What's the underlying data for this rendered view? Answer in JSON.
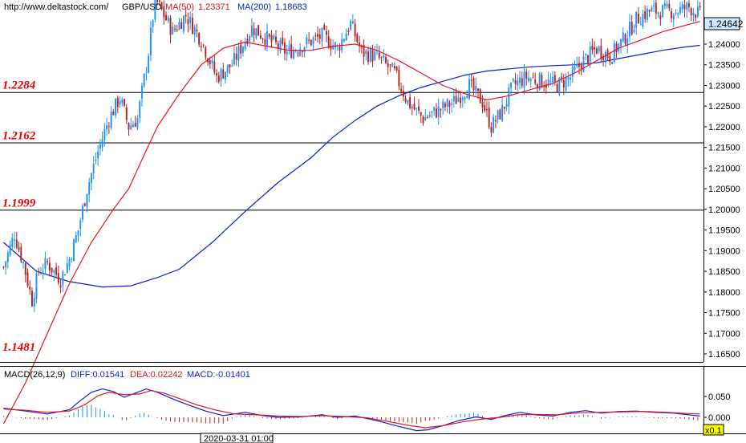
{
  "header": {
    "url": "http://www.deltastock.com/",
    "symbol": "GBP/USD",
    "ma50_label": "MA(50)",
    "ma50_value": "1.23371",
    "ma200_label": "MA(200)",
    "ma200_value": "1.18683"
  },
  "current_price": "1.24642",
  "macd_header": {
    "name": "MACD(26,12,9)",
    "diff": "DIFF:0.01541",
    "dea": "DEA:0.02242",
    "macd": "MACD:-0.01401"
  },
  "time_label": "2020-03-31 01:00",
  "zoom_label": "x0.1",
  "colors": {
    "up": "#1e90ff",
    "down": "#b22222",
    "ma50": "#e8141e",
    "ma200": "#0a1ed2",
    "level_text": "#e60000",
    "price_box": "#cde8ff"
  },
  "chart_data": [
    {
      "type": "candlestick",
      "title": "GBP/USD",
      "ylim": [
        1.16,
        1.26
      ],
      "y_ticks": [
        {
          "value": 1.165,
          "label": "1.16500"
        },
        {
          "value": 1.17,
          "label": "1.17000"
        },
        {
          "value": 1.175,
          "label": "1.17500"
        },
        {
          "value": 1.18,
          "label": "1.18000"
        },
        {
          "value": 1.185,
          "label": "1.18500"
        },
        {
          "value": 1.19,
          "label": "1.19000"
        },
        {
          "value": 1.195,
          "label": "1.19500"
        },
        {
          "value": 1.2,
          "label": "1.20000"
        },
        {
          "value": 1.205,
          "label": "1.20500"
        },
        {
          "value": 1.21,
          "label": "1.21000"
        },
        {
          "value": 1.215,
          "label": "1.21500"
        },
        {
          "value": 1.22,
          "label": "1.22000"
        },
        {
          "value": 1.225,
          "label": "1.22500"
        },
        {
          "value": 1.23,
          "label": "1.23000"
        },
        {
          "value": 1.235,
          "label": "1.23500"
        },
        {
          "value": 1.24,
          "label": "1.24000"
        }
      ],
      "levels": [
        {
          "value": 1.2284,
          "label": "1.2284"
        },
        {
          "value": 1.2162,
          "label": "1.2162"
        },
        {
          "value": 1.1999,
          "label": "1.1999"
        },
        {
          "value": 1.1481,
          "label": "1.1481"
        }
      ],
      "close_anchors": [
        [
          0,
          1.186
        ],
        [
          5,
          1.194
        ],
        [
          9,
          1.187
        ],
        [
          13,
          1.178
        ],
        [
          16,
          1.185
        ],
        [
          20,
          1.187
        ],
        [
          26,
          1.183
        ],
        [
          30,
          1.188
        ],
        [
          34,
          1.195
        ],
        [
          38,
          1.205
        ],
        [
          43,
          1.214
        ],
        [
          48,
          1.222
        ],
        [
          53,
          1.227
        ],
        [
          57,
          1.22
        ],
        [
          61,
          1.222
        ],
        [
          66,
          1.238
        ],
        [
          69,
          1.251
        ],
        [
          73,
          1.247
        ],
        [
          77,
          1.243
        ],
        [
          83,
          1.247
        ],
        [
          90,
          1.241
        ],
        [
          97,
          1.232
        ],
        [
          104,
          1.235
        ],
        [
          113,
          1.244
        ],
        [
          121,
          1.241
        ],
        [
          129,
          1.238
        ],
        [
          137,
          1.24
        ],
        [
          145,
          1.242
        ],
        [
          152,
          1.239
        ],
        [
          158,
          1.245
        ],
        [
          163,
          1.238
        ],
        [
          170,
          1.237
        ],
        [
          178,
          1.233
        ],
        [
          184,
          1.226
        ],
        [
          191,
          1.222
        ],
        [
          198,
          1.224
        ],
        [
          205,
          1.226
        ],
        [
          212,
          1.23
        ],
        [
          218,
          1.226
        ],
        [
          222,
          1.22
        ],
        [
          227,
          1.224
        ],
        [
          232,
          1.23
        ],
        [
          238,
          1.232
        ],
        [
          245,
          1.231
        ],
        [
          252,
          1.23
        ],
        [
          258,
          1.232
        ],
        [
          264,
          1.236
        ],
        [
          270,
          1.239
        ],
        [
          276,
          1.237
        ],
        [
          282,
          1.241
        ],
        [
          288,
          1.246
        ],
        [
          294,
          1.248
        ],
        [
          300,
          1.248
        ],
        [
          306,
          1.248
        ],
        [
          312,
          1.249
        ],
        [
          317,
          1.247
        ]
      ],
      "ma50": {
        "name": "MA(50)",
        "points": [
          [
            0,
            1.1481
          ],
          [
            10,
            1.158
          ],
          [
            20,
            1.17
          ],
          [
            30,
            1.182
          ],
          [
            40,
            1.192
          ],
          [
            50,
            1.2
          ],
          [
            57,
            1.205
          ],
          [
            63,
            1.212
          ],
          [
            70,
            1.22
          ],
          [
            80,
            1.228
          ],
          [
            90,
            1.235
          ],
          [
            100,
            1.239
          ],
          [
            110,
            1.2405
          ],
          [
            120,
            1.2395
          ],
          [
            130,
            1.2385
          ],
          [
            140,
            1.2385
          ],
          [
            150,
            1.2395
          ],
          [
            160,
            1.24
          ],
          [
            170,
            1.2385
          ],
          [
            180,
            1.236
          ],
          [
            190,
            1.233
          ],
          [
            200,
            1.23
          ],
          [
            210,
            1.228
          ],
          [
            220,
            1.2265
          ],
          [
            230,
            1.2275
          ],
          [
            240,
            1.229
          ],
          [
            250,
            1.2305
          ],
          [
            260,
            1.233
          ],
          [
            270,
            1.236
          ],
          [
            280,
            1.239
          ],
          [
            290,
            1.241
          ],
          [
            300,
            1.243
          ],
          [
            310,
            1.2445
          ],
          [
            317,
            1.2455
          ]
        ]
      },
      "ma200": {
        "name": "MA(200)",
        "points": [
          [
            0,
            1.192
          ],
          [
            15,
            1.185
          ],
          [
            30,
            1.1825
          ],
          [
            45,
            1.1812
          ],
          [
            58,
            1.1815
          ],
          [
            70,
            1.1835
          ],
          [
            80,
            1.1855
          ],
          [
            95,
            1.192
          ],
          [
            110,
            1.1995
          ],
          [
            125,
            1.2065
          ],
          [
            140,
            1.2125
          ],
          [
            150,
            1.2175
          ],
          [
            160,
            1.2215
          ],
          [
            170,
            1.225
          ],
          [
            180,
            1.2275
          ],
          [
            190,
            1.2295
          ],
          [
            200,
            1.231
          ],
          [
            210,
            1.2325
          ],
          [
            220,
            1.2335
          ],
          [
            230,
            1.234
          ],
          [
            240,
            1.2345
          ],
          [
            250,
            1.2348
          ],
          [
            260,
            1.235
          ],
          [
            270,
            1.2355
          ],
          [
            280,
            1.2365
          ],
          [
            290,
            1.2375
          ],
          [
            300,
            1.2385
          ],
          [
            310,
            1.2393
          ],
          [
            317,
            1.2397
          ]
        ]
      },
      "bar_count": 318
    },
    {
      "type": "macd",
      "title": "MACD(26,12,9)",
      "ylim": [
        -0.04,
        0.09
      ],
      "y_ticks": [
        {
          "value": 0.05,
          "label": "0.050"
        },
        {
          "value": 0.0,
          "label": "0.000"
        }
      ],
      "diff": {
        "name": "DIFF",
        "points": [
          [
            0,
            0.022
          ],
          [
            10,
            0.015
          ],
          [
            20,
            0.008
          ],
          [
            30,
            0.018
          ],
          [
            35,
            0.04
          ],
          [
            40,
            0.06
          ],
          [
            45,
            0.068
          ],
          [
            50,
            0.062
          ],
          [
            55,
            0.048
          ],
          [
            60,
            0.058
          ],
          [
            65,
            0.068
          ],
          [
            70,
            0.06
          ],
          [
            78,
            0.042
          ],
          [
            85,
            0.028
          ],
          [
            92,
            0.015
          ],
          [
            100,
            0.004
          ],
          [
            110,
            0.012
          ],
          [
            118,
            0.004
          ],
          [
            125,
            0.0
          ],
          [
            135,
            0.001
          ],
          [
            145,
            0.006
          ],
          [
            152,
            0.0
          ],
          [
            160,
            0.003
          ],
          [
            170,
            -0.008
          ],
          [
            180,
            -0.022
          ],
          [
            188,
            -0.032
          ],
          [
            193,
            -0.03
          ],
          [
            200,
            -0.02
          ],
          [
            207,
            -0.008
          ],
          [
            215,
            0.001
          ],
          [
            222,
            -0.005
          ],
          [
            228,
            0.004
          ],
          [
            235,
            0.012
          ],
          [
            242,
            0.006
          ],
          [
            250,
            0.003
          ],
          [
            258,
            0.012
          ],
          [
            265,
            0.016
          ],
          [
            272,
            0.01
          ],
          [
            280,
            0.014
          ],
          [
            288,
            0.015
          ],
          [
            296,
            0.012
          ],
          [
            305,
            0.01
          ],
          [
            312,
            0.006
          ],
          [
            317,
            0.003
          ]
        ]
      },
      "dea": {
        "name": "DEA",
        "points": [
          [
            0,
            0.02
          ],
          [
            10,
            0.017
          ],
          [
            20,
            0.012
          ],
          [
            30,
            0.015
          ],
          [
            37,
            0.03
          ],
          [
            43,
            0.052
          ],
          [
            48,
            0.06
          ],
          [
            55,
            0.054
          ],
          [
            62,
            0.056
          ],
          [
            67,
            0.064
          ],
          [
            73,
            0.058
          ],
          [
            80,
            0.045
          ],
          [
            88,
            0.03
          ],
          [
            96,
            0.018
          ],
          [
            105,
            0.008
          ],
          [
            115,
            0.006
          ],
          [
            125,
            0.003
          ],
          [
            135,
            0.002
          ],
          [
            145,
            0.004
          ],
          [
            155,
            0.002
          ],
          [
            165,
            -0.001
          ],
          [
            175,
            -0.01
          ],
          [
            185,
            -0.02
          ],
          [
            192,
            -0.025
          ],
          [
            200,
            -0.02
          ],
          [
            210,
            -0.01
          ],
          [
            218,
            -0.004
          ],
          [
            226,
            0.0
          ],
          [
            234,
            0.006
          ],
          [
            242,
            0.007
          ],
          [
            252,
            0.006
          ],
          [
            262,
            0.011
          ],
          [
            272,
            0.012
          ],
          [
            282,
            0.013
          ],
          [
            292,
            0.014
          ],
          [
            302,
            0.012
          ],
          [
            312,
            0.009
          ],
          [
            317,
            0.008
          ]
        ]
      }
    }
  ]
}
